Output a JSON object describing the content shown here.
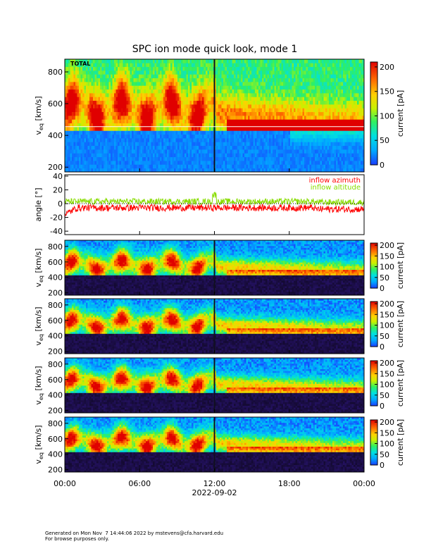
{
  "title": "SPC ion mode quick look, mode 1",
  "xaxis": {
    "ticks": [
      "00:00",
      "06:00",
      "12:00",
      "18:00",
      "00:00"
    ],
    "date_label": "2022-09-02"
  },
  "footer": {
    "line1": "Generated on Mon Nov  7 14:44:06 2022 by mstevens@cfa.harvard.edu",
    "line2": "For browse purposes only."
  },
  "colors": {
    "inflow_azimuth": "#ff0000",
    "inflow_altitude": "#88dd00"
  },
  "chart_data": [
    {
      "type": "heatmap",
      "panel_label": "TOTAL",
      "ylabel": "v_eq [km/s]",
      "ylabel_main": "v",
      "ylabel_sub": "eq",
      "ylabel_unit": "[km/s]",
      "x_range_hours": [
        0,
        24
      ],
      "ylim": [
        170,
        880
      ],
      "yticks": [
        200,
        400,
        600,
        800
      ],
      "colorbar": {
        "label": "current [pA]",
        "range": [
          0,
          210
        ],
        "ticks": [
          0,
          50,
          100,
          150,
          200
        ]
      },
      "features": {
        "bright_band_kms": [
          430,
          700
        ],
        "gap_hour": 12.0
      }
    },
    {
      "type": "line",
      "ylabel": "angle [°]",
      "ylim": [
        -45,
        42
      ],
      "yticks": [
        -40,
        -20,
        0,
        20,
        40
      ],
      "series": [
        {
          "name": "inflow azimuth",
          "color": "#ff0000",
          "approx_level_deg": -6
        },
        {
          "name": "inflow altitude",
          "color": "#88dd00",
          "approx_level_deg": 3
        }
      ]
    },
    {
      "type": "heatmap",
      "panel_label": "",
      "ylabel": "v_eq [km/s]",
      "ylabel_main": "v",
      "ylabel_sub": "eq",
      "ylabel_unit": "[km/s]",
      "ylim": [
        170,
        880
      ],
      "yticks": [
        200,
        400,
        600,
        800
      ],
      "colorbar": {
        "label": "current [pA]",
        "range": [
          0,
          210
        ],
        "ticks": [
          0,
          50,
          100,
          150,
          200
        ]
      }
    },
    {
      "type": "heatmap",
      "panel_label": "",
      "ylabel": "v_eq [km/s]",
      "ylabel_main": "v",
      "ylabel_sub": "eq",
      "ylabel_unit": "[km/s]",
      "ylim": [
        170,
        880
      ],
      "yticks": [
        200,
        400,
        600,
        800
      ],
      "colorbar": {
        "label": "current [pA]",
        "range": [
          0,
          210
        ],
        "ticks": [
          0,
          50,
          100,
          150,
          200
        ]
      }
    },
    {
      "type": "heatmap",
      "panel_label": "",
      "ylabel": "v_eq [km/s]",
      "ylabel_main": "v",
      "ylabel_sub": "eq",
      "ylabel_unit": "[km/s]",
      "ylim": [
        170,
        880
      ],
      "yticks": [
        200,
        400,
        600,
        800
      ],
      "colorbar": {
        "label": "current [pA]",
        "range": [
          0,
          210
        ],
        "ticks": [
          0,
          50,
          100,
          150,
          200
        ]
      }
    },
    {
      "type": "heatmap",
      "panel_label": "",
      "ylabel": "v_eq [km/s]",
      "ylabel_main": "v",
      "ylabel_sub": "eq",
      "ylabel_unit": "[km/s]",
      "ylim": [
        170,
        880
      ],
      "yticks": [
        200,
        400,
        600,
        800
      ],
      "colorbar": {
        "label": "current [pA]",
        "range": [
          0,
          210
        ],
        "ticks": [
          0,
          50,
          100,
          150,
          200
        ]
      }
    }
  ]
}
